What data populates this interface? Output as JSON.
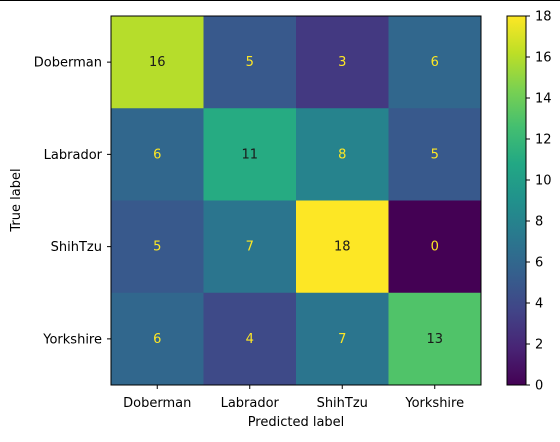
{
  "chart_data": {
    "type": "heatmap",
    "title": "",
    "xlabel": "Predicted label",
    "ylabel": "True label",
    "x_categories": [
      "Doberman",
      "Labrador",
      "ShihTzu",
      "Yorkshire"
    ],
    "y_categories": [
      "Doberman",
      "Labrador",
      "ShihTzu",
      "Yorkshire"
    ],
    "values": [
      [
        16,
        5,
        3,
        6
      ],
      [
        6,
        11,
        8,
        5
      ],
      [
        5,
        7,
        18,
        0
      ],
      [
        6,
        4,
        7,
        13
      ]
    ],
    "colormap": "viridis",
    "vmin": 0,
    "vmax": 18,
    "colorbar_ticks": [
      "0",
      "2",
      "4",
      "6",
      "8",
      "10",
      "12",
      "14",
      "16",
      "18"
    ],
    "text_color_dark": "#1a1a1a",
    "text_color_light": "#fde725"
  }
}
